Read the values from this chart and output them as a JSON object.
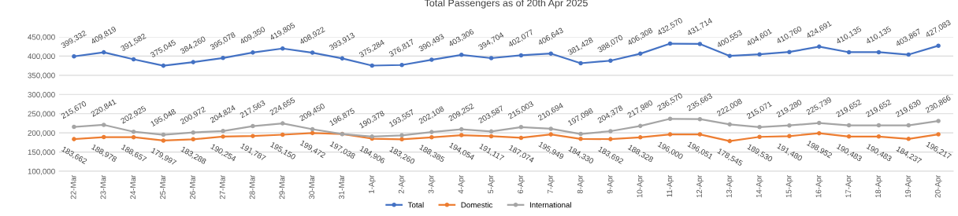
{
  "chart_data": {
    "type": "line",
    "title": "Total Passengers as of 20th Apr 2025",
    "categories": [
      "22-Mar",
      "23-Mar",
      "24-Mar",
      "25-Mar",
      "26-Mar",
      "27-Mar",
      "28-Mar",
      "29-Mar",
      "30-Mar",
      "31-Mar",
      "1-Apr",
      "2-Apr",
      "3-Apr",
      "4-Apr",
      "5-Apr",
      "6-Apr",
      "7-Apr",
      "8-Apr",
      "9-Apr",
      "10-Apr",
      "11-Apr",
      "12-Apr",
      "13-Apr",
      "14-Apr",
      "15-Apr",
      "16-Apr",
      "17-Apr",
      "18-Apr",
      "19-Apr",
      "20-Apr"
    ],
    "series": [
      {
        "name": "Total",
        "color": "#4472c4",
        "values": [
          399332,
          409819,
          391582,
          375045,
          384260,
          395078,
          409350,
          419805,
          408922,
          393913,
          375284,
          376817,
          390493,
          403306,
          394704,
          402077,
          406643,
          381428,
          388070,
          406308,
          432570,
          431714,
          400553,
          404601,
          410760,
          424691,
          410135,
          410135,
          403867,
          427083
        ],
        "value_labels": [
          "399,332",
          "409,819",
          "391,582",
          "375,045",
          "384,260",
          "395,078",
          "409,350",
          "419,805",
          "408,922",
          "393,913",
          "375,284",
          "376,817",
          "390,493",
          "403,306",
          "394,704",
          "402,077",
          "406,643",
          "381,428",
          "388,070",
          "406,308",
          "432,570",
          "431,714",
          "400,553",
          "404,601",
          "410,760",
          "424,691",
          "410,135",
          "410,135",
          "403,867",
          "427,083"
        ]
      },
      {
        "name": "Domestic",
        "color": "#ed7d31",
        "values": [
          183662,
          188978,
          188657,
          179997,
          183288,
          190254,
          191787,
          195150,
          199472,
          197038,
          184906,
          183260,
          188385,
          194054,
          191117,
          187074,
          195949,
          184330,
          183692,
          188328,
          196000,
          196051,
          178545,
          189530,
          191480,
          198952,
          190483,
          190483,
          184237,
          196217
        ],
        "value_labels": [
          "183,662",
          "188,978",
          "188,657",
          "179,997",
          "183,288",
          "190,254",
          "191,787",
          "195,150",
          "199,472",
          "197,038",
          "184,906",
          "183,260",
          "188,385",
          "194,054",
          "191,117",
          "187,074",
          "195,949",
          "184,330",
          "183,692",
          "188,328",
          "196,000",
          "196,051",
          "178,545",
          "189,530",
          "191,480",
          "198,952",
          "190,483",
          "190,483",
          "184,237",
          "196,217"
        ]
      },
      {
        "name": "International",
        "color": "#a5a5a5",
        "values": [
          215670,
          220841,
          202925,
          195048,
          200972,
          204824,
          217563,
          224655,
          209450,
          196875,
          190378,
          193557,
          202108,
          209252,
          203587,
          215003,
          210694,
          197098,
          204378,
          217980,
          236570,
          235663,
          222008,
          215071,
          219280,
          225739,
          219652,
          219652,
          219630,
          230866
        ],
        "value_labels": [
          "215,670",
          "220,841",
          "202,925",
          "195,048",
          "200,972",
          "204,824",
          "217,563",
          "224,655",
          "209,450",
          "196,875",
          "190,378",
          "193,557",
          "202,108",
          "209,252",
          "203,587",
          "215,003",
          "210,694",
          "197,098",
          "204,378",
          "217,980",
          "236,570",
          "235,663",
          "222,008",
          "215,071",
          "219,280",
          "225,739",
          "219,652",
          "219,652",
          "219,630",
          "230,866"
        ]
      }
    ],
    "ylim": [
      100000,
      450000
    ],
    "yticks": [
      {
        "value": 100000,
        "label": "100,000"
      },
      {
        "value": 150000,
        "label": "150,000"
      },
      {
        "value": 200000,
        "label": "200,000"
      },
      {
        "value": 250000,
        "label": "250,000"
      },
      {
        "value": 300000,
        "label": "300,000"
      },
      {
        "value": 350000,
        "label": "350,000"
      },
      {
        "value": 400000,
        "label": "400,000"
      },
      {
        "value": 450000,
        "label": "450,000"
      }
    ],
    "grid": "y",
    "legend": "bottom",
    "marker": "circle",
    "line_style": "solid"
  }
}
